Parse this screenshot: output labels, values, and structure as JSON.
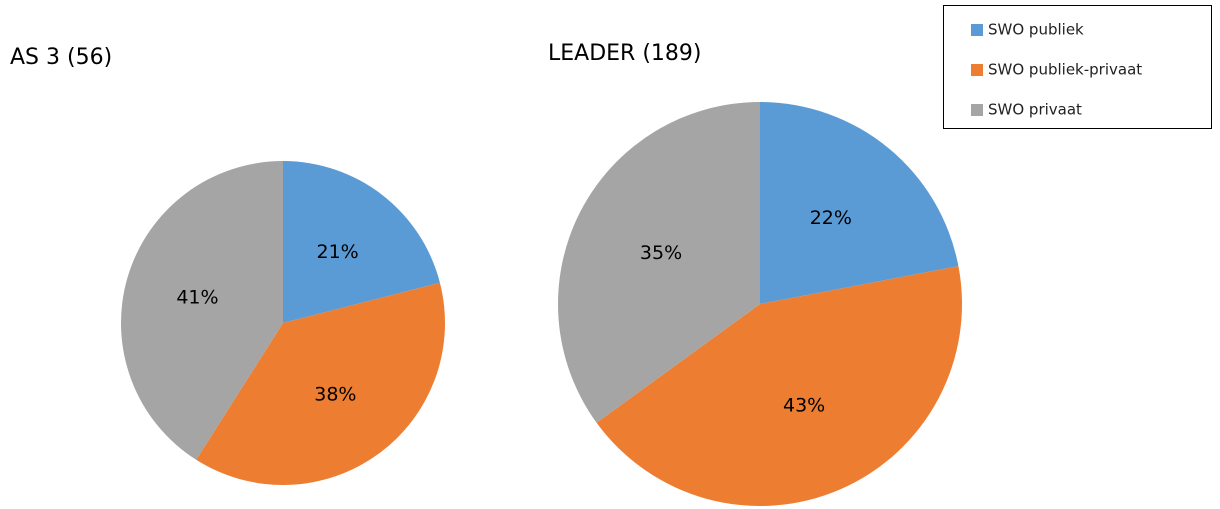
{
  "chart_data": [
    {
      "type": "pie",
      "title": "AS 3 (56)",
      "categories": [
        "SWO publiek",
        "SWO publiek-privaat",
        "SWO privaat"
      ],
      "values": [
        21,
        38,
        41
      ],
      "value_labels": [
        "21%",
        "38%",
        "41%"
      ],
      "colors": [
        "#5b9bd5",
        "#ed7d31",
        "#a5a5a5"
      ],
      "legend": "top-right"
    },
    {
      "type": "pie",
      "title": "LEADER (189)",
      "values": [
        22,
        43,
        35
      ],
      "value_labels": [
        "22%",
        "43%",
        "35%"
      ],
      "colors": [
        "#5b9bd5",
        "#ed7d31",
        "#a5a5a5"
      ]
    }
  ]
}
